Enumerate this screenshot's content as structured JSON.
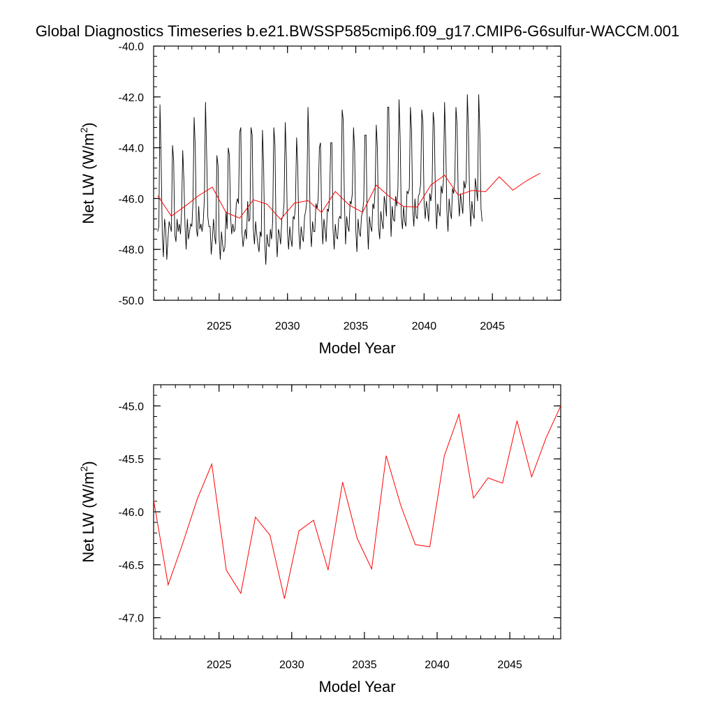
{
  "title": "Global Diagnostics Timeseries b.e21.BWSSP585cmip6.f09_g17.CMIP6-G6sulfur-WACCM.001",
  "chart_data": [
    {
      "type": "line",
      "xlabel": "Model Year",
      "ylabel": "Net LW (W/m",
      "ylabel_sup": "2",
      "ylabel_close": ")",
      "xlim": [
        2020.2,
        2050.0
      ],
      "ylim": [
        -50.0,
        -40.0
      ],
      "x_ticks": [
        2025,
        2030,
        2035,
        2040,
        2045
      ],
      "x_tick_labels": [
        "2025",
        "2030",
        "2035",
        "2040",
        "2045"
      ],
      "y_ticks": [
        -50,
        -48,
        -46,
        -44,
        -42,
        -40
      ],
      "y_tick_labels": [
        "-50.0",
        "-48.0",
        "-46.0",
        "-44.0",
        "-42.0",
        "-40.0"
      ],
      "series": [
        {
          "kind": "monthly",
          "color": "#000000",
          "start_year": 2020.5,
          "step_years": 0.08333,
          "values": [
            -47.3,
            -47.1,
            -42.3,
            -44.5,
            -47.4,
            -48.3,
            -46.8,
            -47.2,
            -48.4,
            -47.6,
            -46.9,
            -47.1,
            -47.3,
            -43.9,
            -44.5,
            -47.4,
            -47.7,
            -46.8,
            -47.3,
            -47.0,
            -47.4,
            -46.5,
            -44.1,
            -45.3,
            -47.1,
            -48.0,
            -46.8,
            -47.6,
            -47.3,
            -47.0,
            -47.1,
            -46.1,
            -42.8,
            -44.0,
            -47.2,
            -47.5,
            -46.3,
            -47.2,
            -47.0,
            -47.3,
            -46.9,
            -46.0,
            -42.2,
            -44.3,
            -46.7,
            -47.1,
            -47.1,
            -48.2,
            -47.6,
            -46.8,
            -47.5,
            -47.8,
            -44.3,
            -44.7,
            -47.6,
            -48.4,
            -47.3,
            -47.8,
            -48.1,
            -47.9,
            -46.5,
            -47.2,
            -44.0,
            -44.3,
            -46.7,
            -47.4,
            -47.0,
            -47.3,
            -47.2,
            -46.2,
            -46.0,
            -46.2,
            -43.4,
            -43.2,
            -47.3,
            -47.9,
            -47.5,
            -47.2,
            -47.6,
            -46.1,
            -46.9,
            -46.8,
            -43.2,
            -43.5,
            -47.2,
            -47.8,
            -46.9,
            -47.4,
            -47.8,
            -48.1,
            -47.3,
            -47.5,
            -43.3,
            -44.6,
            -47.7,
            -48.6,
            -47.4,
            -47.8,
            -47.9,
            -47.2,
            -47.6,
            -46.9,
            -43.2,
            -43.9,
            -47.4,
            -48.3,
            -47.2,
            -47.4,
            -47.8,
            -46.8,
            -46.7,
            -46.2,
            -43.0,
            -44.4,
            -47.3,
            -48.0,
            -47.1,
            -47.6,
            -47.9,
            -46.7,
            -46.8,
            -46.3,
            -43.6,
            -44.7,
            -47.3,
            -48.0,
            -47.1,
            -47.5,
            -47.7,
            -46.7,
            -46.5,
            -46.1,
            -42.4,
            -44.1,
            -47.1,
            -47.9,
            -46.9,
            -47.3,
            -47.3,
            -46.2,
            -46.4,
            -46.0,
            -44.0,
            -43.8,
            -46.7,
            -47.8,
            -46.8,
            -47.2,
            -47.7,
            -46.4,
            -46.5,
            -46.0,
            -43.8,
            -43.8,
            -47.2,
            -48.0,
            -47.0,
            -47.5,
            -47.6,
            -46.8,
            -46.7,
            -46.8,
            -42.5,
            -42.9,
            -46.0,
            -47.8,
            -46.7,
            -47.1,
            -47.3,
            -46.1,
            -46.2,
            -45.8,
            -43.2,
            -44.1,
            -47.2,
            -48.1,
            -46.8,
            -47.3,
            -47.5,
            -46.7,
            -46.5,
            -46.1,
            -43.5,
            -43.5,
            -46.8,
            -48.0,
            -46.7,
            -47.1,
            -47.3,
            -46.2,
            -46.4,
            -45.7,
            -43.1,
            -44.0,
            -47.1,
            -47.6,
            -46.5,
            -46.9,
            -47.2,
            -45.9,
            -46.2,
            -46.7,
            -42.4,
            -42.4,
            -45.7,
            -47.5,
            -46.3,
            -46.8,
            -46.9,
            -45.9,
            -46.3,
            -45.6,
            -42.1,
            -43.6,
            -46.7,
            -47.2,
            -46.3,
            -46.9,
            -47.1,
            -45.7,
            -45.8,
            -45.6,
            -42.4,
            -43.3,
            -46.4,
            -47.1,
            -46.0,
            -46.7,
            -46.8,
            -45.9,
            -45.8,
            -45.4,
            -42.5,
            -43.0,
            -46.1,
            -46.8,
            -46.1,
            -46.4,
            -46.9,
            -45.8,
            -46.1,
            -45.6,
            -42.6,
            -43.1,
            -46.0,
            -47.2,
            -46.2,
            -46.5,
            -46.7,
            -45.5,
            -45.8,
            -45.3,
            -42.2,
            -43.8,
            -46.5,
            -47.3,
            -46.0,
            -46.5,
            -46.8,
            -45.6,
            -45.8,
            -45.3,
            -42.4,
            -43.1,
            -46.0,
            -46.7,
            -45.8,
            -46.2,
            -46.6,
            -45.3,
            -45.6,
            -45.3,
            -41.9,
            -43.3,
            -46.1,
            -47.1,
            -46.1,
            -46.6,
            -46.8,
            -45.2,
            -45.6,
            -46.1,
            -41.9,
            -43.4,
            -46.4,
            -46.9
          ]
        },
        {
          "kind": "annual",
          "color": "#ff0000",
          "x": [
            2020.5,
            2021.5,
            2022.5,
            2023.5,
            2024.5,
            2025.5,
            2026.5,
            2027.5,
            2028.5,
            2029.5,
            2030.5,
            2031.5,
            2032.5,
            2033.5,
            2034.5,
            2035.5,
            2036.5,
            2037.5,
            2038.5,
            2039.5,
            2040.5,
            2041.5,
            2042.5,
            2043.5,
            2044.5,
            2045.5,
            2046.5,
            2047.5,
            2048.5
          ],
          "values": [
            -45.89,
            -46.69,
            -46.3,
            -45.88,
            -45.55,
            -46.55,
            -46.77,
            -46.05,
            -46.22,
            -46.82,
            -46.18,
            -46.08,
            -46.55,
            -45.72,
            -46.25,
            -46.54,
            -45.47,
            -45.94,
            -46.31,
            -46.33,
            -45.47,
            -45.08,
            -45.87,
            -45.68,
            -45.73,
            -45.14,
            -45.67,
            -45.3,
            -45.0
          ]
        }
      ]
    },
    {
      "type": "line",
      "xlabel": "Model Year",
      "ylabel": "Net LW (W/m",
      "ylabel_sup": "2",
      "ylabel_close": ")",
      "xlim": [
        2020.5,
        2048.5
      ],
      "ylim": [
        -47.2,
        -44.8
      ],
      "x_ticks": [
        2025,
        2030,
        2035,
        2040,
        2045
      ],
      "x_tick_labels": [
        "2025",
        "2030",
        "2035",
        "2040",
        "2045"
      ],
      "y_ticks": [
        -47.0,
        -46.5,
        -46.0,
        -45.5,
        -45.0
      ],
      "y_tick_labels": [
        "-47.0",
        "-46.5",
        "-46.0",
        "-45.5",
        "-45.0"
      ],
      "series": [
        {
          "kind": "annual",
          "color": "#ff0000",
          "x": [
            2020.5,
            2021.5,
            2022.5,
            2023.5,
            2024.5,
            2025.5,
            2026.5,
            2027.5,
            2028.5,
            2029.5,
            2030.5,
            2031.5,
            2032.5,
            2033.5,
            2034.5,
            2035.5,
            2036.5,
            2037.5,
            2038.5,
            2039.5,
            2040.5,
            2041.5,
            2042.5,
            2043.5,
            2044.5,
            2045.5,
            2046.5,
            2047.5,
            2048.5
          ],
          "values": [
            -45.89,
            -46.69,
            -46.3,
            -45.88,
            -45.55,
            -46.55,
            -46.77,
            -46.05,
            -46.22,
            -46.82,
            -46.18,
            -46.08,
            -46.55,
            -45.72,
            -46.25,
            -46.54,
            -45.47,
            -45.94,
            -46.31,
            -46.33,
            -45.47,
            -45.08,
            -45.87,
            -45.68,
            -45.73,
            -45.14,
            -45.67,
            -45.3,
            -45.0
          ]
        }
      ]
    }
  ]
}
